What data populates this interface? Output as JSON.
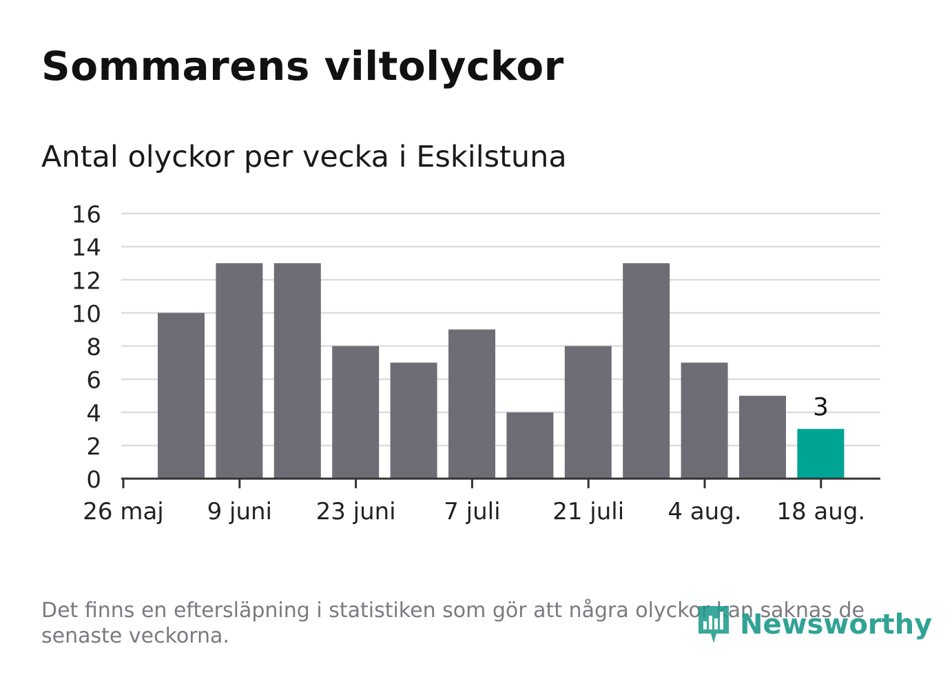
{
  "title": "Sommarens viltolyckor",
  "subtitle": "Antal olyckor per vecka i Eskilstuna",
  "footnote": "Det finns en eftersläpning i statistiken som gör att några olyckor kan saknas de senaste veckorna.",
  "logo": {
    "text": "Newsworthy",
    "icon": "newsworthy-logo-icon",
    "color": "#1a9a8a"
  },
  "colors": {
    "bar": "#6e6d75",
    "highlight": "#00a495",
    "grid": "#dddddd",
    "axis": "#333333"
  },
  "chart_data": {
    "type": "bar",
    "x": [
      "2020-06-01",
      "2020-06-08",
      "2020-06-15",
      "2020-06-22",
      "2020-06-29",
      "2020-07-06",
      "2020-07-13",
      "2020-07-20",
      "2020-07-27",
      "2020-08-03",
      "2020-08-10",
      "2020-08-17"
    ],
    "values": [
      10,
      13,
      13,
      8,
      7,
      9,
      4,
      8,
      13,
      7,
      5,
      3
    ],
    "highlight_index": 11,
    "data_labels": [
      {
        "index": 11,
        "text": "3"
      }
    ],
    "ylim": [
      0,
      16
    ],
    "yticks": [
      0,
      2,
      4,
      6,
      8,
      10,
      12,
      14,
      16
    ],
    "xticks": [
      "26 maj",
      "9 juni",
      "23 juni",
      "7 juli",
      "21 juli",
      "4 aug.",
      "18 aug."
    ],
    "grid": true,
    "legend": "none"
  }
}
